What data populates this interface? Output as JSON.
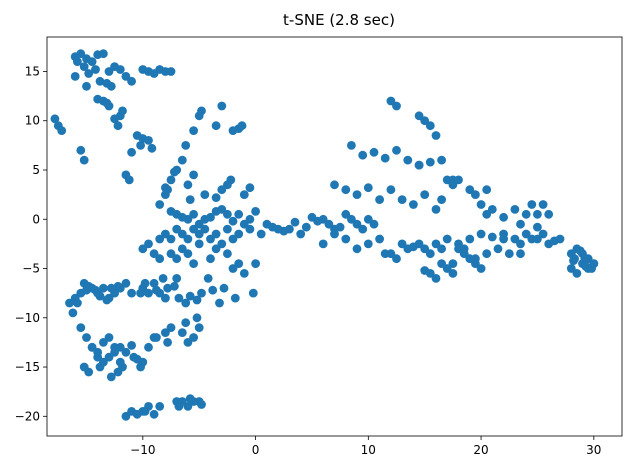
{
  "chart_data": {
    "type": "scatter",
    "title": "t-SNE (2.8 sec)",
    "xlabel": "",
    "ylabel": "",
    "xlim": [
      -18.5,
      32.5
    ],
    "ylim": [
      -22.0,
      18.5
    ],
    "xticks": [
      -10,
      0,
      10,
      20,
      30
    ],
    "yticks": [
      -20,
      -15,
      -10,
      -5,
      0,
      5,
      10,
      15
    ],
    "xtick_labels": [
      "−10",
      "0",
      "10",
      "20",
      "30"
    ],
    "ytick_labels": [
      "−20",
      "−15",
      "−10",
      "−5",
      "0",
      "5",
      "10",
      "15"
    ],
    "grid": false,
    "legend": "none",
    "color": "#1f77b4",
    "series": [
      {
        "x": [
          -16.0,
          -15.5,
          -15.0,
          -14.5,
          -14.0,
          -13.5,
          -15.8,
          -15.2,
          -14.8,
          -14.2,
          -13.0,
          -12.5,
          -12.0,
          -11.5,
          -11.0,
          -10.0,
          -9.5,
          -9.0,
          -8.5,
          -8.0,
          -7.5,
          -13.8,
          -13.2,
          -14.0,
          -12.8,
          -15.0,
          -16.0,
          -17.5,
          -17.8,
          -17.2,
          -15.5,
          -15.2,
          -13.5,
          -13.0,
          -12.5,
          -12.0,
          -11.8,
          -12.2,
          -13.2,
          -10.5,
          -10.0,
          -10.2,
          -9.5,
          -9.2,
          -11.0,
          -11.5,
          -11.2,
          -8.0,
          -7.5,
          -7.0,
          -6.5,
          -6.2,
          -5.5,
          -5.0,
          -4.8,
          -3.5,
          -3.0,
          -2.0,
          -1.5,
          -1.2,
          -8.5,
          -8.0,
          -7.8,
          -7.2,
          -6.0,
          -5.5,
          -5.8,
          -4.5,
          -3.5,
          -3.0,
          -2.5,
          -2.2,
          -1.0,
          -0.5,
          -7.5,
          -7.0,
          -6.5,
          -6.0,
          -5.5,
          -5.0,
          -4.5,
          -4.0,
          -3.5,
          -3.0,
          -2.5,
          -2.0,
          -1.5,
          -1.0,
          -0.5,
          0.0,
          -9.5,
          -8.5,
          -8.0,
          -7.5,
          -7.0,
          -6.5,
          -6.0,
          -5.5,
          -5.0,
          -4.5,
          -4.0,
          -3.5,
          -3.0,
          -2.5,
          -2.0,
          -1.5,
          -0.5,
          0.5,
          -10.0,
          -9.0,
          -8.5,
          -7.5,
          -7.0,
          -6.5,
          -6.0,
          -5.5,
          -5.0,
          -4.0,
          -3.5,
          -2.5,
          -2.0,
          -1.5,
          -1.0,
          0.0,
          -16.5,
          -16.0,
          -15.5,
          -15.0,
          -14.5,
          -14.0,
          -13.5,
          -13.0,
          -12.5,
          -12.0,
          -11.5,
          -11.0,
          -10.0,
          -9.5,
          -9.0,
          -8.5,
          -8.0,
          -7.0,
          -16.2,
          -15.8,
          -15.2,
          -14.8,
          -14.2,
          -13.8,
          -13.2,
          -12.8,
          -12.2,
          -10.2,
          -9.8,
          -8.8,
          -8.2,
          -7.8,
          -7.2,
          -6.8,
          -6.2,
          -5.8,
          -5.2,
          -4.8,
          -4.2,
          -3.8,
          -3.2,
          -2.8,
          -1.8,
          -0.2,
          -15.5,
          -15.0,
          -14.5,
          -14.0,
          -13.5,
          -13.0,
          -12.5,
          -12.0,
          -10.5,
          -10.0,
          -9.5,
          -9.0,
          -8.0,
          -7.5,
          -6.5,
          -6.0,
          -5.5,
          -5.0,
          -15.2,
          -14.8,
          -13.8,
          -12.8,
          -12.2,
          -11.8,
          -10.8,
          -10.2,
          -8.8,
          -7.8,
          -6.2,
          -5.2,
          -11.5,
          -11.0,
          -10.5,
          -10.0,
          -9.5,
          -9.0,
          -8.5,
          -7.0,
          -6.5,
          -6.0,
          -5.5,
          -5.0,
          -4.8,
          -9.8,
          -6.8,
          -5.8,
          -14.5,
          -14.0,
          -13.5,
          -13.0,
          -12.5,
          -12.0,
          -11.5,
          -11.0,
          1.0,
          2.0,
          3.0,
          4.0,
          5.0,
          6.0,
          7.0,
          8.0,
          9.0,
          10.0,
          1.5,
          2.5,
          3.5,
          4.5,
          5.5,
          6.5,
          7.5,
          8.5,
          9.5,
          10.5,
          7.0,
          8.0,
          9.0,
          10.0,
          11.0,
          12.0,
          13.0,
          14.0,
          15.0,
          16.0,
          8.5,
          9.5,
          10.5,
          11.5,
          12.5,
          13.5,
          14.5,
          15.5,
          16.5,
          17.5,
          6.0,
          7.0,
          8.0,
          9.0,
          10.0,
          11.0,
          12.0,
          13.0,
          14.0,
          15.0,
          16.0,
          17.0,
          18.0,
          19.0,
          20.0,
          21.0,
          22.0,
          23.0,
          24.0,
          25.0,
          26.0,
          27.0,
          11.5,
          12.5,
          13.5,
          14.5,
          15.5,
          16.5,
          17.5,
          18.5,
          19.5,
          20.5,
          21.5,
          22.5,
          23.5,
          24.5,
          25.5,
          26.5,
          12.0,
          12.5,
          14.5,
          15.0,
          15.5,
          16.0,
          17.0,
          17.5,
          18.0,
          19.0,
          19.5,
          20.0,
          20.5,
          21.0,
          22.0,
          23.0,
          23.5,
          24.0,
          24.5,
          25.0,
          25.5,
          26.0,
          28.0,
          28.5,
          29.0,
          29.5,
          30.0,
          28.2,
          28.8,
          29.2,
          29.8,
          28.0,
          28.5,
          29.0,
          29.5,
          30.0,
          28.3,
          29.3,
          15.0,
          15.5,
          16.0,
          16.5,
          17.0,
          17.5,
          18.0,
          18.5,
          19.0,
          19.5,
          20.0,
          22.0,
          23.5,
          25.0,
          14.5,
          16.5,
          20.5
        ],
        "y": [
          16.5,
          16.8,
          16.3,
          16.0,
          16.7,
          16.8,
          16.0,
          15.5,
          14.8,
          15.2,
          15.0,
          15.5,
          15.2,
          14.5,
          14.0,
          15.2,
          15.0,
          14.8,
          15.2,
          15.0,
          15.0,
          14.0,
          13.8,
          12.2,
          13.5,
          13.5,
          14.5,
          9.5,
          10.2,
          9.0,
          7.0,
          6.0,
          12.0,
          11.5,
          10.2,
          10.5,
          11.0,
          9.5,
          11.8,
          8.5,
          8.2,
          7.5,
          8.0,
          7.2,
          6.8,
          4.5,
          4.0,
          3.2,
          4.0,
          5.0,
          6.0,
          7.5,
          9.0,
          10.5,
          11.0,
          9.5,
          11.5,
          9.0,
          9.2,
          9.5,
          1.5,
          2.5,
          3.0,
          4.8,
          3.5,
          4.5,
          2.0,
          2.5,
          2.2,
          3.0,
          3.5,
          4.0,
          2.5,
          3.2,
          0.8,
          0.5,
          0.2,
          0.0,
          0.5,
          -0.5,
          0.0,
          0.2,
          0.8,
          1.0,
          0.5,
          -0.2,
          0.5,
          -0.5,
          0.0,
          0.8,
          -2.5,
          -2.0,
          -1.5,
          -2.0,
          -1.0,
          -1.5,
          -2.0,
          -1.0,
          -1.5,
          -1.0,
          -2.0,
          -1.5,
          -2.5,
          -1.0,
          -2.0,
          -1.5,
          -1.0,
          -1.5,
          -3.0,
          -3.5,
          -4.0,
          -3.5,
          -4.0,
          -3.0,
          -3.5,
          -4.5,
          -2.5,
          -4.0,
          -3.0,
          -3.5,
          -5.0,
          -4.5,
          -5.5,
          -4.5,
          -8.5,
          -8.0,
          -7.5,
          -7.2,
          -7.0,
          -7.5,
          -7.0,
          -8.0,
          -7.5,
          -7.0,
          -6.5,
          -7.5,
          -7.0,
          -7.5,
          -6.5,
          -7.5,
          -8.0,
          -6.0,
          -9.5,
          -8.5,
          -6.5,
          -6.8,
          -7.2,
          -7.8,
          -8.2,
          -7.0,
          -6.8,
          -7.5,
          -6.5,
          -7.2,
          -6.0,
          -7.0,
          -6.8,
          -8.0,
          -8.5,
          -7.8,
          -8.2,
          -7.5,
          -6.0,
          -7.2,
          -8.5,
          -7.0,
          -8.0,
          -7.5,
          -11.0,
          -12.0,
          -13.0,
          -14.0,
          -14.5,
          -14.0,
          -13.5,
          -13.0,
          -14.2,
          -14.5,
          -13.0,
          -12.0,
          -11.5,
          -11.0,
          -11.5,
          -12.5,
          -12.0,
          -11.0,
          -15.0,
          -15.5,
          -15.0,
          -16.0,
          -15.5,
          -15.0,
          -14.0,
          -15.0,
          -12.0,
          -12.5,
          -10.5,
          -10.0,
          -20.0,
          -19.5,
          -19.8,
          -19.5,
          -19.0,
          -19.8,
          -19.0,
          -18.5,
          -18.5,
          -19.0,
          -18.5,
          -18.5,
          -18.8,
          -19.5,
          -19.0,
          -18.2,
          -13.0,
          -13.5,
          -12.5,
          -12.0,
          -13.0,
          -14.5,
          -13.5,
          -12.8,
          -0.5,
          -1.0,
          -1.0,
          -1.5,
          0.2,
          0.0,
          -1.0,
          0.5,
          -0.5,
          0.0,
          -0.8,
          -1.2,
          -0.3,
          -0.8,
          -0.2,
          -0.5,
          -0.8,
          0.0,
          -1.0,
          -0.5,
          3.5,
          3.0,
          2.5,
          3.2,
          2.0,
          3.0,
          2.0,
          1.5,
          2.5,
          1.0,
          7.5,
          6.5,
          6.8,
          6.2,
          7.0,
          6.0,
          5.5,
          5.8,
          6.0,
          4.0,
          -2.5,
          -1.5,
          -2.0,
          -3.0,
          -2.5,
          -2.0,
          -3.5,
          -2.5,
          -2.8,
          -3.0,
          -2.5,
          -2.0,
          -2.5,
          -2.0,
          -1.5,
          -1.8,
          -2.0,
          -2.0,
          -1.5,
          -2.0,
          -2.5,
          -2.0,
          -3.5,
          -4.0,
          -3.0,
          -2.5,
          -3.5,
          -3.0,
          -4.5,
          -3.0,
          -4.0,
          -3.5,
          -3.0,
          -3.5,
          -2.5,
          -2.0,
          -1.5,
          -2.2,
          12.0,
          11.5,
          10.5,
          10.0,
          9.5,
          8.5,
          4.0,
          3.5,
          4.0,
          3.0,
          2.5,
          1.5,
          0.5,
          1.0,
          0.2,
          1.0,
          -0.5,
          0.5,
          1.5,
          0.5,
          1.5,
          0.5,
          -3.5,
          -3.0,
          -3.5,
          -4.0,
          -4.5,
          -4.2,
          -3.2,
          -4.0,
          -5.0,
          -5.0,
          -5.5,
          -4.5,
          -5.0,
          -4.5,
          -4.0,
          -4.8,
          -5.2,
          -5.5,
          -6.0,
          -4.5,
          -5.0,
          -5.5,
          -3.0,
          -3.5,
          -4.0,
          -4.5,
          -5.0,
          -1.5,
          -3.5,
          -0.8,
          5.5,
          2.0,
          3.0
        ],
        "name": ""
      }
    ]
  }
}
